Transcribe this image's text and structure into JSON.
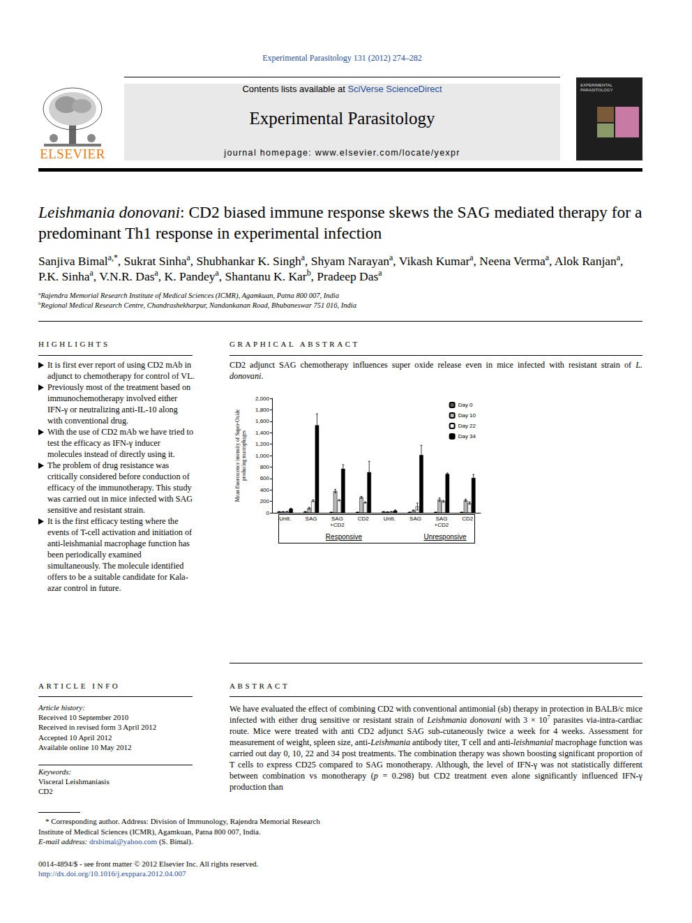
{
  "header": {
    "citation": "Experimental Parasitology 131 (2012) 274–282",
    "contents": [
      "Contents lists available at ",
      {
        "link": "SciVerse ScienceDirect"
      }
    ],
    "journal": "Experimental Parasitology",
    "homepage": "journal homepage: www.elsevier.com/locate/yexpr",
    "publisher": "ELSEVIER",
    "cover_text": "EXPERIMENTAL PARASITOLOGY"
  },
  "title": [
    {
      "i": "Leishmania donovani"
    },
    ": CD2 biased immune response skews the SAG mediated therapy for a predominant Th1 response in experimental infection"
  ],
  "authors": [
    {
      "name": "Sanjiva Bimal",
      "sup": "a,*",
      "sep": ", "
    },
    {
      "name": "Sukrat Sinha",
      "sup": "a",
      "sep": ", "
    },
    {
      "name": "Shubhankar K. Singh",
      "sup": "a",
      "sep": ", "
    },
    {
      "name": "Shyam Narayan",
      "sup": "a",
      "sep": ", "
    },
    {
      "name": "Vikash Kumar",
      "sup": "a",
      "sep": ", "
    },
    {
      "name": "Neena Verma",
      "sup": "a",
      "sep": ", "
    },
    {
      "name": "Alok Ranjan",
      "sup": "a",
      "sep": ", "
    },
    {
      "name": "P.K. Sinha",
      "sup": "a",
      "sep": ", "
    },
    {
      "name": "V.N.R. Das",
      "sup": "a",
      "sep": ", "
    },
    {
      "name": "K. Pandey",
      "sup": "a",
      "sep": ", "
    },
    {
      "name": "Shantanu K. Kar",
      "sup": "b",
      "sep": ", "
    },
    {
      "name": "Pradeep Das",
      "sup": "a"
    }
  ],
  "affiliations": [
    {
      "sup": "a",
      "text": "Rajendra Memorial Research Institute of Medical Sciences (ICMR), Agamkuan, Patna 800 007, India"
    },
    {
      "sup": "b",
      "text": "Regional Medical Research Centre, Chandrashekharpur, Nandankanan Road, Bhubaneswar 751 016, India"
    }
  ],
  "highlights": {
    "heading": "HIGHLIGHTS",
    "items": [
      "It is first ever report of using CD2 mAb in adjunct to chemotherapy for control of VL.",
      "Previously most of the treatment based on immunochemotherapy involved either IFN-γ or neutralizing anti-IL-10 along with conventional drug.",
      "With the use of CD2 mAb we have tried to test the efficacy as IFN-γ inducer molecules instead of directly using it.",
      "The problem of drug resistance was critically considered before conduction of efficacy of the immunotherapy. This study was carried out in mice infected with SAG sensitive and resistant strain.",
      "It is the first efficacy testing where the events of T-cell activation and initiation of anti-leishmanial macrophage function has been periodically examined simultaneously. The molecule identified offers to be a suitable candidate for Kala-azar control in future."
    ]
  },
  "graphical_abstract": {
    "heading": "GRAPHICAL ABSTRACT",
    "caption": [
      "CD2 adjunct SAG chemotherapy influences super oxide release even in mice infected with resistant strain of ",
      {
        "i": "L. donovani"
      },
      "."
    ]
  },
  "article_info": {
    "heading": "ARTICLE INFO",
    "history_heading": "Article history:",
    "history": [
      "Received 10 September 2010",
      "Received in revised form 3 April 2012",
      "Accepted 10 April 2012",
      "Available online 10 May 2012"
    ],
    "keywords_heading": "Keywords:",
    "keywords": [
      "Visceral Leishmaniasis",
      "CD2"
    ]
  },
  "abstract": {
    "heading": "ABSTRACT",
    "text": [
      "We have evaluated the effect of combining CD2 with conventional antimonial (sb) therapy in protection in BALB/c mice infected with either drug sensitive or resistant strain of ",
      {
        "i": "Leishmania donovani"
      },
      " with 3 × 10",
      {
        "sup": "7"
      },
      " parasites via-intra-cardiac route. Mice were treated with anti CD2 adjunct SAG sub-cutaneously twice a week for 4 weeks. Assessment for measurement of weight, spleen size, anti-",
      {
        "i": "Leishmania"
      },
      " antibody titer, T cell and anti-",
      {
        "i": "leishmanial"
      },
      " macrophage function was carried out day 0, 10, 22 and 34 post treatments. The combination therapy was shown boosting significant proportion of T cells to express CD25 compared to SAG monotherapy. Although, the level of IFN-γ was not statistically different between combination vs monotherapy (",
      {
        "i": "p"
      },
      " = 0.298) but CD2 treatment even alone significantly influenced IFN-γ production than"
    ]
  },
  "footnote": [
    [
      "* Corresponding author. Address: Division of Immunology, Rajendra Memorial Research Institute of Medical Sciences (ICMR), Agamkuan, Patna 800 007, India."
    ],
    [
      {
        "i": "E-mail address:"
      },
      " ",
      {
        "link": "drsbimal@yahoo.com"
      },
      " (S. Bimal)."
    ]
  ],
  "footer": {
    "issn": "0014-4894/$ - see front matter © 2012 Elsevier Inc. All rights reserved.",
    "doi": "http://dx.doi.org/10.1016/j.exppara.2012.04.007"
  },
  "chart_data": {
    "type": "bar",
    "y_label": [
      "Mean fluorescence intensity of Super-Oxide",
      "producing macrophages"
    ],
    "categories": [
      "Untt.",
      "SAG",
      "SAG\n+CD2",
      "CD2",
      "Untt.",
      "SAG",
      "SAG\n+CD2",
      "CD2"
    ],
    "group_labels": [
      "Responsive",
      "Unresponsive"
    ],
    "series": [
      {
        "name": "Day 0",
        "color": "#5a5a5a",
        "values": [
          20,
          20,
          10,
          10,
          20,
          10,
          10,
          10
        ],
        "errors": [
          3,
          3,
          3,
          3,
          3,
          3,
          3,
          3
        ]
      },
      {
        "name": "Day 10",
        "color": "#b8b8b8",
        "values": [
          20,
          80,
          380,
          270,
          15,
          40,
          230,
          220
        ],
        "errors": [
          3,
          15,
          30,
          15,
          3,
          10,
          30,
          20
        ]
      },
      {
        "name": "Day 22",
        "color": "#f2f2f2",
        "values": [
          20,
          210,
          220,
          180,
          20,
          110,
          200,
          170
        ],
        "errors": [
          3,
          15,
          10,
          10,
          3,
          60,
          15,
          20
        ]
      },
      {
        "name": "Day 34",
        "color": "#000000",
        "values": [
          70,
          1530,
          770,
          710,
          40,
          1010,
          680,
          610
        ],
        "errors": [
          10,
          200,
          70,
          190,
          10,
          170,
          15,
          60
        ]
      }
    ],
    "ylim": [
      0,
      2000
    ],
    "yticks": [
      0,
      200,
      400,
      600,
      800,
      1000,
      1200,
      1400,
      1600,
      1800,
      2000
    ],
    "grid": false,
    "legend": "upper right"
  }
}
